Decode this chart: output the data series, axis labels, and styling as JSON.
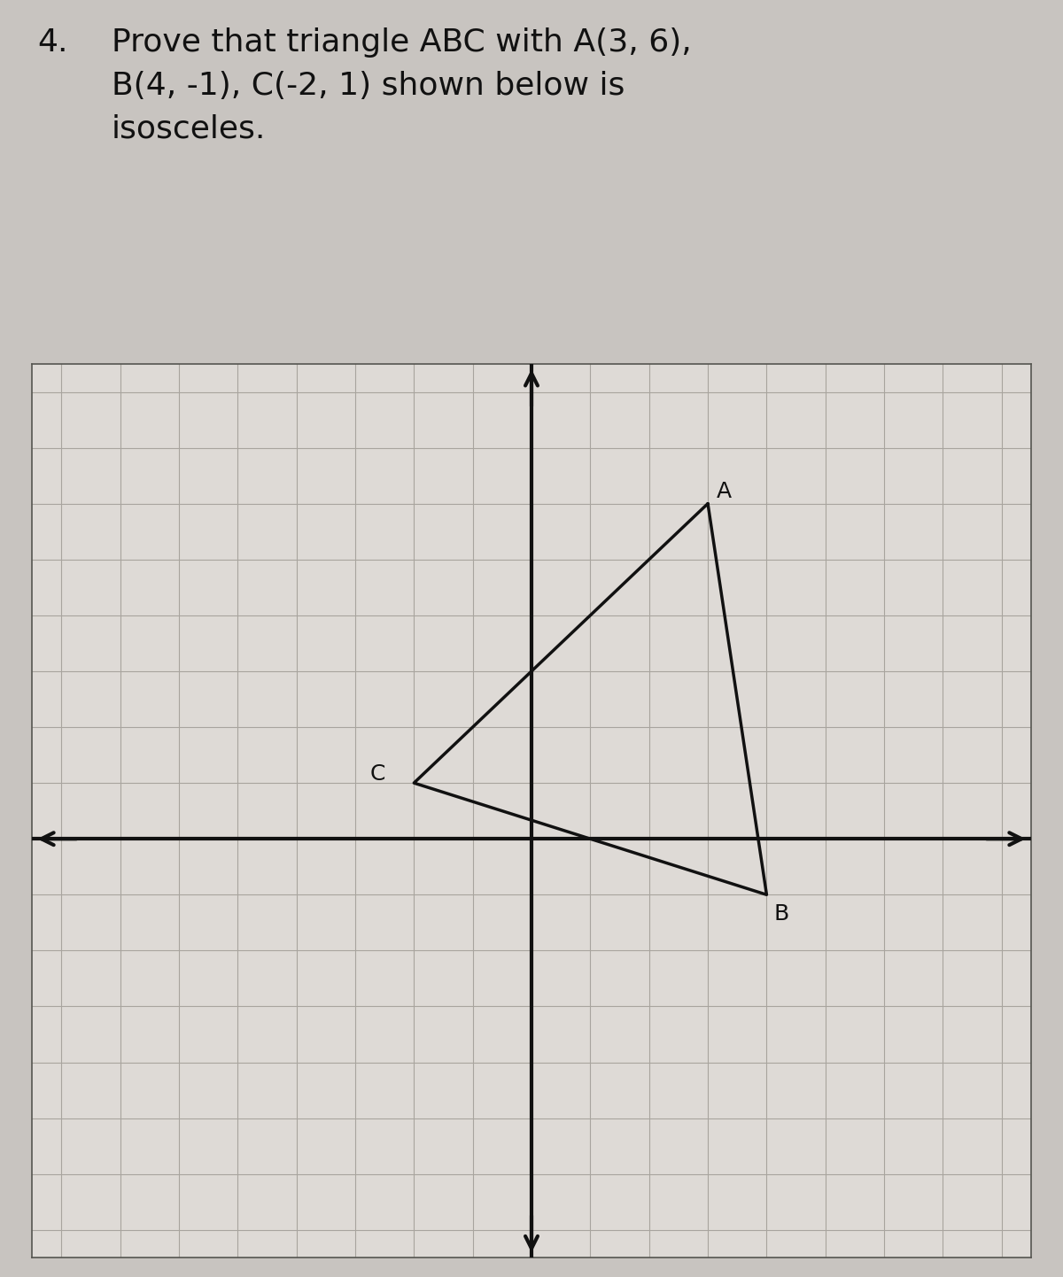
{
  "title_number": "4.",
  "title_text": "Prove that triangle ABC with A(3, 6),\nB(4, -1), C(-2, 1) shown below is\nisosceles.",
  "A": [
    3,
    6
  ],
  "B": [
    4,
    -1
  ],
  "C": [
    -2,
    1
  ],
  "xlim": [
    -8.5,
    8.5
  ],
  "ylim": [
    -7.5,
    8.5
  ],
  "background_color": "#c8c4c0",
  "plot_background": "#dedad6",
  "grid_color": "#a8a49e",
  "axis_color": "#111111",
  "triangle_color": "#111111",
  "triangle_linewidth": 2.5,
  "axis_linewidth": 3.0,
  "label_fontsize": 18,
  "title_fontsize": 26,
  "title_number_fontsize": 26,
  "text_color": "#111111"
}
